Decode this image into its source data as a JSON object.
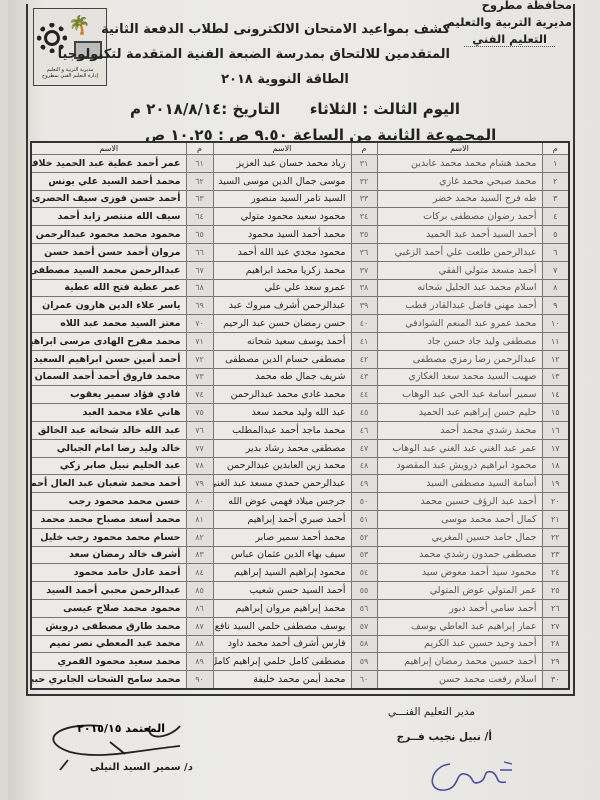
{
  "header": {
    "governorate": "محافظة مطروح",
    "directorate": "مديرية التربية والتعليم",
    "department": "التعليم الفني",
    "logo_text": [
      "مديرية التربية و التعليم",
      "إدارة التعليم الفني بمطروح"
    ],
    "title_lines": [
      "كشف بمواعيد الامتحان الالكترونى لطلاب الدفعة الثانية",
      "المتقدمين للالتحاق بمدرسة الضبعة الفنية المتقدمة لتكنولوجيا",
      "الطاقة النووية ٢٠١٨"
    ],
    "day": "اليوم الثالث : الثلاثاء",
    "date": "التاريخ :٢٠١٨/٨/١٤ م",
    "group": "المجموعة الثانية من الساعة ٩.٥٠ ص : ١٠.٢٥ ص"
  },
  "table": {
    "headers": [
      "م",
      "الاسم",
      "م",
      "الاسم",
      "م",
      "الاسم"
    ],
    "rows": [
      [
        "١",
        "محمد هشام محمد محمد عابدين",
        "٣١",
        "زياد محمد حسان عبد العزيز",
        "٦١",
        "عمر أحمد عطية عبد الحميد خلاف"
      ],
      [
        "٢",
        "محمد صبحي محمد غازي",
        "٣٢",
        "موسى جمال الدين موسى السيد",
        "٦٢",
        "محمد أحمد السيد علي يونس"
      ],
      [
        "٣",
        "طه فرج السيد محمد خضر",
        "٣٣",
        "السيد تامر السيد منصور",
        "٦٣",
        "أحمد حسن فوزى سيف الحصرى"
      ],
      [
        "٤",
        "أحمد رضوان مصطفى بركات",
        "٣٤",
        "محمود سعيد محمود متولي",
        "٦٤",
        "سيف الله منتصر زايد أحمد"
      ],
      [
        "٥",
        "أحمد السيد أحمد عبد الحميد",
        "٣٥",
        "محمد أحمد السيد محمود",
        "٦٥",
        "محمود محمد محمود عبدالرحمن سليم"
      ],
      [
        "٦",
        "عبدالرحمن طلعت علي أحمد الزغبي",
        "٣٦",
        "محمود مجدي عبد الله أحمد",
        "٦٦",
        "مروان أحمد حسن أحمد حسن"
      ],
      [
        "٧",
        "أحمد مسعد متولي الفقي",
        "٣٧",
        "محمد زكريا محمد ابراهيم",
        "٦٧",
        "عبدالرحمن محمد السيد مصطفى"
      ],
      [
        "٨",
        "اسلام محمد عبد الجليل شحاته",
        "٣٨",
        "عمرو سعد علي علي",
        "٦٨",
        "عمر عطية فتح الله عطية"
      ],
      [
        "٩",
        "أحمد مهني فاضل عبدالقادر قطب",
        "٣٩",
        "عبدالرحمن أشرف مبروك عبد",
        "٦٩",
        "ياسر علاء الدين هارون عمران"
      ],
      [
        "١٠",
        "محمد عمرو عبد المنعم الشوادفي",
        "٤٠",
        "حسن رمضان حسن عبد الرحيم",
        "٧٠",
        "معتز السيد محمد عبد اللاه"
      ],
      [
        "١١",
        "مصطفى وليد جاد حسن جاد",
        "٤١",
        "أحمد يوسف سعيد شحاته",
        "٧١",
        "محمد مفرح الهادى مرسى ابراهيم"
      ],
      [
        "١٢",
        "عبدالرحمن رضا رمزي مصطفى",
        "٤٢",
        "مصطفى حسام الدين مصطفى",
        "٧٢",
        "أحمد أمين حسن ابراهيم السعيد"
      ],
      [
        "١٣",
        "صهيب السيد محمد سعد العكازي",
        "٤٣",
        "شريف جمال طه محمد",
        "٧٣",
        "محمد فاروق أحمد أحمد السمان"
      ],
      [
        "١٤",
        "سمير أسامة عبد الحي عبد الوهاب",
        "٤٤",
        "محمد غادي محمد عبدالرحمن",
        "٧٤",
        "فادي فؤاد سمير يعقوب"
      ],
      [
        "١٥",
        "حليم حسن إبراهيم عبد الحميد",
        "٤٥",
        "عبد الله وليد محمد سعد",
        "٧٥",
        "هاني علاء محمد العبد"
      ],
      [
        "١٦",
        "محمد رشدي محمد أحمد",
        "٤٦",
        "محمد ماجد أحمد عبدالمطلب",
        "٧٦",
        "عبد الله خالد شحاته عبد الخالق"
      ],
      [
        "١٧",
        "عمر عبد الغني عبد الغني عبد الوهاب",
        "٤٧",
        "مصطفى محمد رشاد بدير",
        "٧٧",
        "خالد وليد رضا امام الجبالي"
      ],
      [
        "١٨",
        "محمود ابراهيم درويش عبد المقصود",
        "٤٨",
        "محمد زين العابدين عبدالرحمن",
        "٧٨",
        "عبد الحليم نبيل صابر زكي"
      ],
      [
        "١٩",
        "أسامة السيد مصطفى السيد",
        "٤٩",
        "عبدالرحمن حمدي مسعد عبد الغني",
        "٧٩",
        "أحمد محمد شعبان عبد العال أحمد"
      ],
      [
        "٢٠",
        "أحمد عبد الرؤف حسين محمد",
        "٥٠",
        "جرجس ميلاد فهمي عوض الله",
        "٨٠",
        "حسن محمد محمود رجب"
      ],
      [
        "٢١",
        "كمال أحمد محمد موسى",
        "٥١",
        "أحمد صبري أحمد إبراهيم",
        "٨١",
        "محمد أسعد مصباح محمد محمد"
      ],
      [
        "٢٢",
        "جمال حامد حسين المغربي",
        "٥٢",
        "محمد أحمد سمير صابر",
        "٨٢",
        "حسام محمد محمود رجب خليل"
      ],
      [
        "٢٣",
        "مصطفى حمدون رشدي محمد",
        "٥٣",
        "سيف بهاء الدين عثمان عباس",
        "٨٣",
        "أشرف خالد رمضان سعد"
      ],
      [
        "٢٤",
        "محمود سيد أحمد معوض سيد",
        "٥٤",
        "محمود إبراهيم السيد إبراهيم",
        "٨٤",
        "أحمد عادل حامد محمود"
      ],
      [
        "٢٥",
        "عمر المتولي عوض المتولي",
        "٥٥",
        "أحمد السيد حسن شعيب",
        "٨٥",
        "عبدالرحمن محبي أحمد السيد"
      ],
      [
        "٢٦",
        "أحمد سامي أحمد دبور",
        "٥٦",
        "محمد إبراهيم مروان إبراهيم",
        "٨٦",
        "محمود محمد صلاح عيسى"
      ],
      [
        "٢٧",
        "عمار إبراهيم عبد العاطي يوسف",
        "٥٧",
        "يوسف مصطفى حلمي السيد نافع",
        "٨٧",
        "محمد طارق مصطفى درويش"
      ],
      [
        "٢٨",
        "أحمد وحيد حسين عبد الكريم",
        "٥٨",
        "فارس أشرف أحمد محمد داود",
        "٨٨",
        "محمد عبد المعطي نصر تميم"
      ],
      [
        "٢٩",
        "أحمد حسين محمد رمضان إبراهيم",
        "٥٩",
        "مصطفى كامل حلمي إبراهيم كامل",
        "٨٩",
        "محمد سعيد محمود القمري"
      ],
      [
        "٣٠",
        "اسلام رفعت محمد حسن",
        "٦٠",
        "محمد أيمن محمد خليفة",
        "٩٠",
        "محمد سامح الشحات الجابري حبيب"
      ]
    ]
  },
  "footer": {
    "director_title": "مدير التعليم الفنـــي",
    "director_name": "أ/ نبيل نجيب فــرج",
    "approver_name": "د/ سمير السيد النيلى",
    "approval_handwriting": "المعتمد ٢٠١٥/١٥"
  }
}
